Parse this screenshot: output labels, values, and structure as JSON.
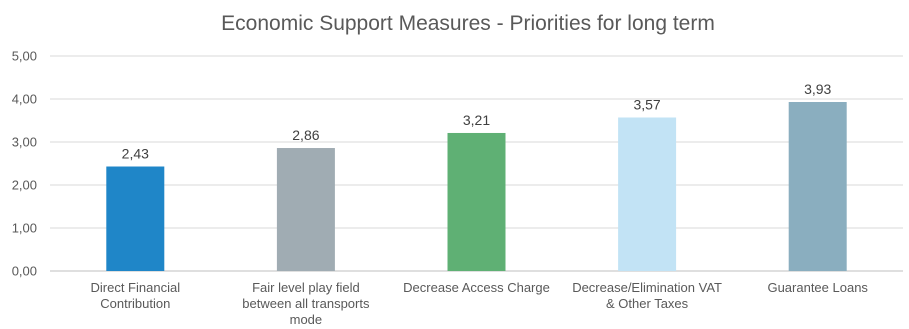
{
  "chart_data": {
    "type": "bar",
    "title": "Economic Support Measures - Priorities for long term",
    "xlabel": "",
    "ylabel": "",
    "ylim": [
      0,
      5
    ],
    "yticks": [
      0,
      1,
      2,
      3,
      4,
      5
    ],
    "ytick_labels": [
      "0,00",
      "1,00",
      "2,00",
      "3,00",
      "4,00",
      "5,00"
    ],
    "grid": true,
    "legend": "none",
    "categories": [
      [
        "Direct Financial",
        "Contribution"
      ],
      [
        "Fair level play field",
        "between all transports",
        "mode"
      ],
      [
        "Decrease Access Charge"
      ],
      [
        "Decrease/Elimination VAT",
        "& Other Taxes"
      ],
      [
        "Guarantee Loans"
      ]
    ],
    "values": [
      2.43,
      2.86,
      3.21,
      3.57,
      3.93
    ],
    "data_labels": [
      "2,43",
      "2,86",
      "3,21",
      "3,57",
      "3,93"
    ],
    "colors": [
      "#1f86c8",
      "#a0acb3",
      "#5fb074",
      "#c2e3f5",
      "#8aaebf"
    ]
  }
}
